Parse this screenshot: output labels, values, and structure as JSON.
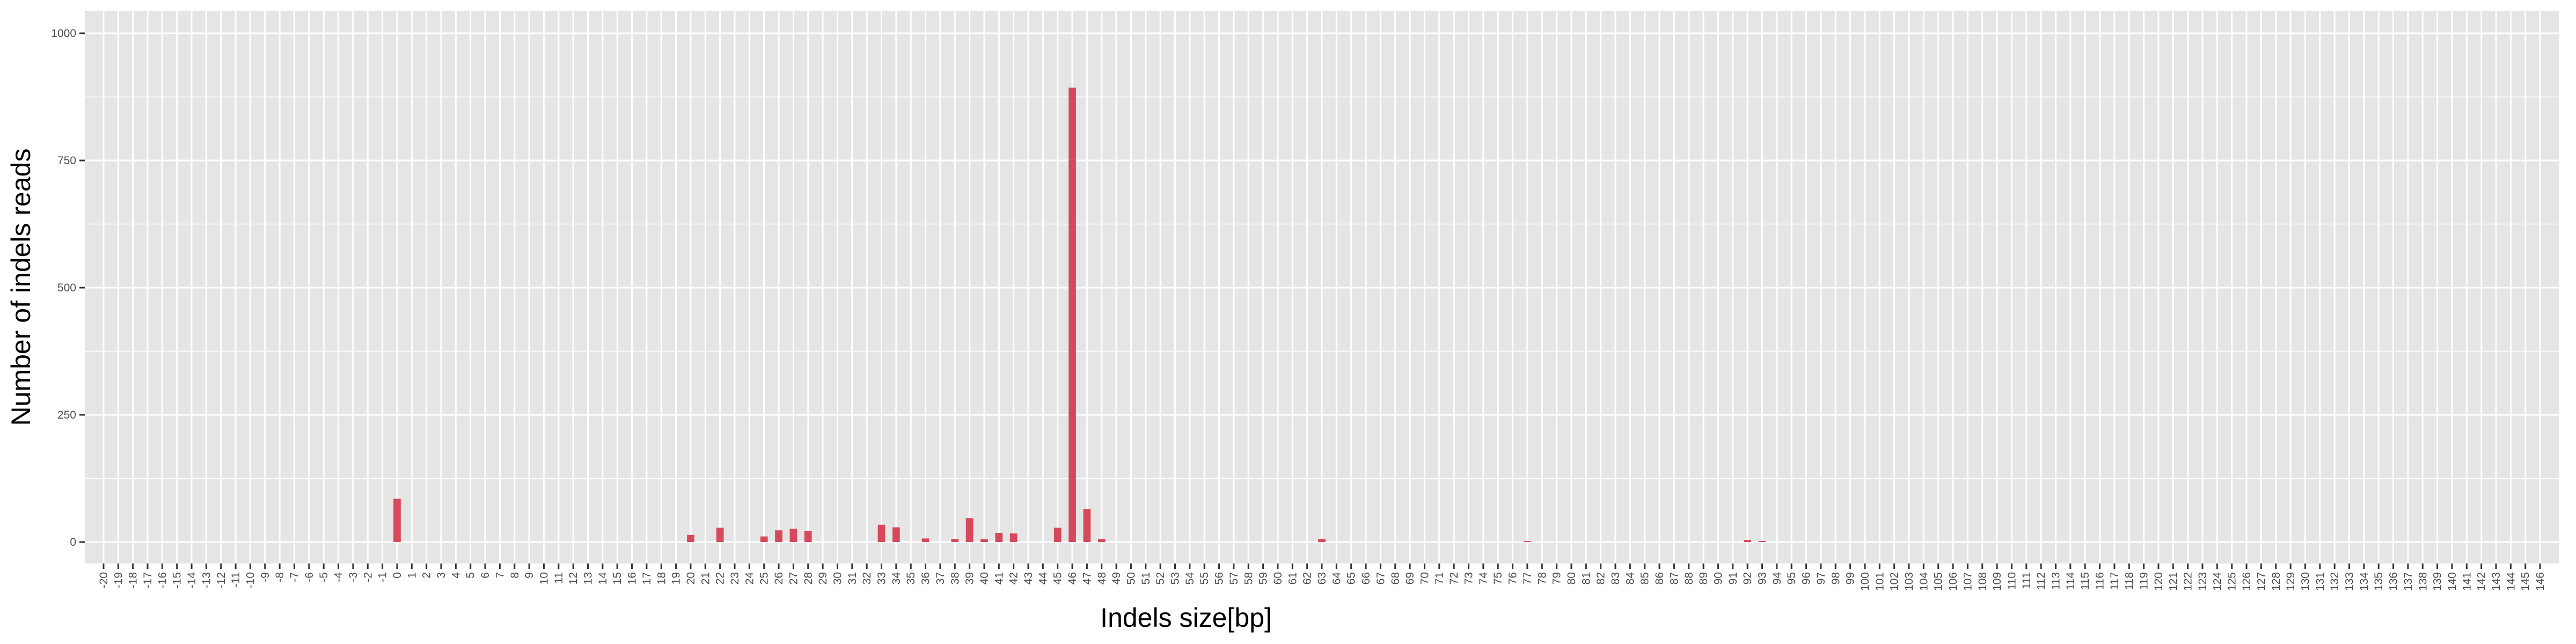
{
  "chart_data": {
    "type": "bar",
    "title": "",
    "xlabel": "Indels size[bp]",
    "ylabel": "Number of indels reads",
    "x_range": [
      -20,
      146
    ],
    "ylim": [
      -50,
      1000
    ],
    "y_ticks": [
      0,
      250,
      500,
      750,
      1000
    ],
    "grid": true,
    "legend": "none",
    "bar_color": "#d6485b",
    "panel_color": "#e5e5e5",
    "grid_color": "#ffffff",
    "series": [
      {
        "values": [
          {
            "x": 0,
            "y": 85
          },
          {
            "x": 20,
            "y": 14
          },
          {
            "x": 22,
            "y": 28
          },
          {
            "x": 25,
            "y": 11
          },
          {
            "x": 26,
            "y": 23
          },
          {
            "x": 27,
            "y": 26
          },
          {
            "x": 28,
            "y": 22
          },
          {
            "x": 33,
            "y": 34
          },
          {
            "x": 34,
            "y": 29
          },
          {
            "x": 36,
            "y": 7
          },
          {
            "x": 38,
            "y": 6
          },
          {
            "x": 39,
            "y": 47
          },
          {
            "x": 40,
            "y": 6
          },
          {
            "x": 41,
            "y": 18
          },
          {
            "x": 42,
            "y": 17
          },
          {
            "x": 45,
            "y": 28
          },
          {
            "x": 46,
            "y": 893
          },
          {
            "x": 47,
            "y": 65
          },
          {
            "x": 48,
            "y": 6
          },
          {
            "x": 63,
            "y": 6
          },
          {
            "x": 77,
            "y": 2
          },
          {
            "x": 92,
            "y": 4
          },
          {
            "x": 93,
            "y": 2
          }
        ]
      }
    ]
  }
}
